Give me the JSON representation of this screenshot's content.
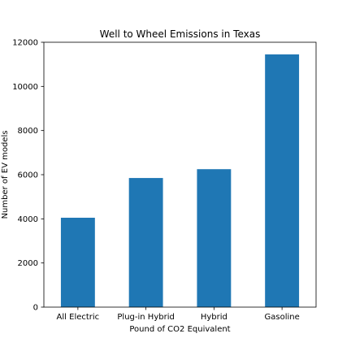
{
  "chart_data": {
    "type": "bar",
    "title": "Well to Wheel Emissions in Texas",
    "xlabel": "Pound of CO2 Equivalent",
    "ylabel": "Number of EV models",
    "categories": [
      "All Electric",
      "Plug-in Hybrid",
      "Hybrid",
      "Gasoline"
    ],
    "values": [
      4050,
      5850,
      6250,
      11450
    ],
    "ylim": [
      0,
      12000
    ],
    "yticks": [
      0,
      2000,
      4000,
      6000,
      8000,
      10000,
      12000
    ],
    "ytick_labels": [
      "0",
      "2000",
      "4000",
      "6000",
      "8000",
      "10000",
      "12000"
    ],
    "grid": false,
    "legend": "none",
    "bar_color": "#1f77b4"
  }
}
